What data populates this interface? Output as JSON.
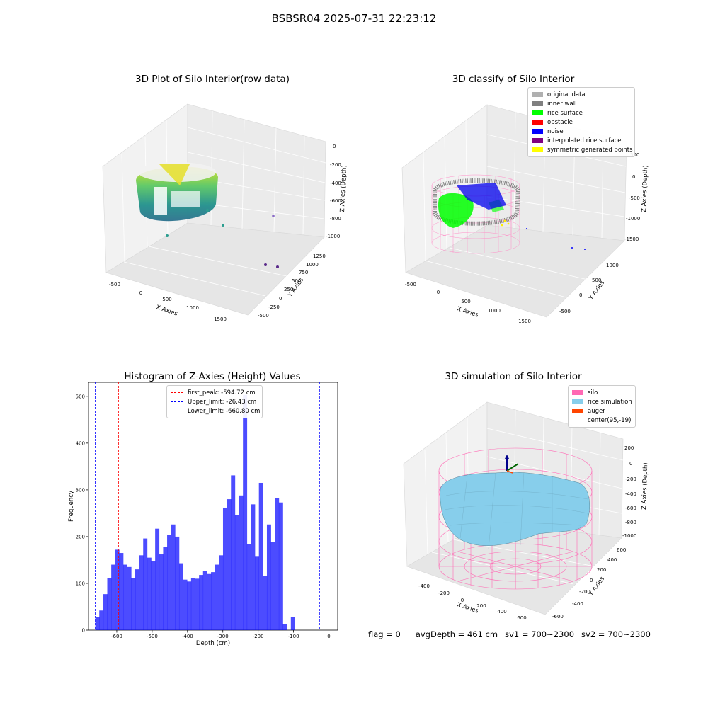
{
  "suptitle": "BSBSR04 2025-07-31 22:23:12",
  "panels": {
    "raw": {
      "title": "3D Plot of Silo Interior(row data)",
      "xlabel": "X Axies",
      "ylabel": "Y Axies",
      "zlabel": "Z Axies (Depth)",
      "xticks": [
        "-500",
        "0",
        "500",
        "1000",
        "1500"
      ],
      "yticks": [
        "-500",
        "-250",
        "0",
        "250",
        "500",
        "750",
        "1000",
        "1250"
      ],
      "zticks": [
        "0",
        "-200",
        "-400",
        "-600",
        "-800",
        "-1000"
      ]
    },
    "classify": {
      "title": "3D classify of Silo Interior",
      "xlabel": "X Axies",
      "ylabel": "Y Axies",
      "zlabel": "Z Axies (Depth)",
      "xticks": [
        "-500",
        "0",
        "500",
        "1000",
        "1500"
      ],
      "yticks": [
        "-500",
        "0",
        "500",
        "1000"
      ],
      "zticks": [
        "500",
        "0",
        "-500",
        "-1000",
        "-1500"
      ],
      "legend": [
        {
          "label": "original data",
          "color": "#b0b0b0"
        },
        {
          "label": "inner wall",
          "color": "#808080"
        },
        {
          "label": "rice surface",
          "color": "#00ff00"
        },
        {
          "label": "obstacle",
          "color": "#ff0000"
        },
        {
          "label": "noise",
          "color": "#0000ff"
        },
        {
          "label": "interpolated rice surface",
          "color": "#800080"
        },
        {
          "label": "symmetric generated points",
          "color": "#ffff00"
        }
      ]
    },
    "simulation": {
      "title": "3D simulation of Silo Interior",
      "xlabel": "X Axies",
      "ylabel": "Y Axies",
      "zlabel": "Z Axies (Depth)",
      "xticks": [
        "-400",
        "-200",
        "0",
        "200",
        "400",
        "600"
      ],
      "yticks": [
        "-600",
        "-400",
        "-200",
        "0",
        "200",
        "400",
        "600"
      ],
      "zticks": [
        "200",
        "0",
        "-200",
        "-400",
        "-600",
        "-800",
        "-1000"
      ],
      "legend": [
        {
          "label": "silo",
          "color": "#ff69b4"
        },
        {
          "label": "rice simulation",
          "color": "#87ceeb"
        },
        {
          "label": "auger",
          "color": "#ff4500"
        },
        {
          "label": "center(95,-19)",
          "color": ""
        }
      ]
    }
  },
  "footer": {
    "flag": "flag = 0",
    "avg": "avgDepth = 461 cm",
    "sv1": "sv1 = 700~2300",
    "sv2": "sv2 = 700~2300"
  },
  "chart_data": {
    "type": "bar",
    "title": "Histogram of Z-Axies (Height) Values",
    "xlabel": "Depth (cm)",
    "ylabel": "Frequency",
    "xlim": [
      -680,
      25
    ],
    "ylim": [
      0,
      530
    ],
    "xticks": [
      -600,
      -500,
      -400,
      -300,
      -200,
      -100,
      0
    ],
    "yticks": [
      0,
      100,
      200,
      300,
      400,
      500
    ],
    "bin_start": -660.8,
    "bin_width": 11.29,
    "values": [
      28,
      42,
      77,
      112,
      140,
      172,
      165,
      140,
      135,
      112,
      130,
      160,
      196,
      155,
      148,
      217,
      162,
      178,
      204,
      226,
      200,
      143,
      108,
      104,
      112,
      110,
      118,
      126,
      120,
      124,
      140,
      160,
      262,
      280,
      331,
      246,
      288,
      503,
      184,
      269,
      157,
      315,
      116,
      226,
      188,
      282,
      273,
      13,
      0,
      28
    ],
    "bar_color": "#0000ff",
    "vlines": [
      {
        "label": "first_peak: -594.72 cm",
        "x": -594.72,
        "color": "#ff0000"
      },
      {
        "label": "Upper_limit: -26.43 cm",
        "x": -26.43,
        "color": "#0000ff"
      },
      {
        "label": "Lower_limit: -660.80 cm",
        "x": -660.8,
        "color": "#0000ff"
      }
    ],
    "legend_position": "top-center"
  }
}
